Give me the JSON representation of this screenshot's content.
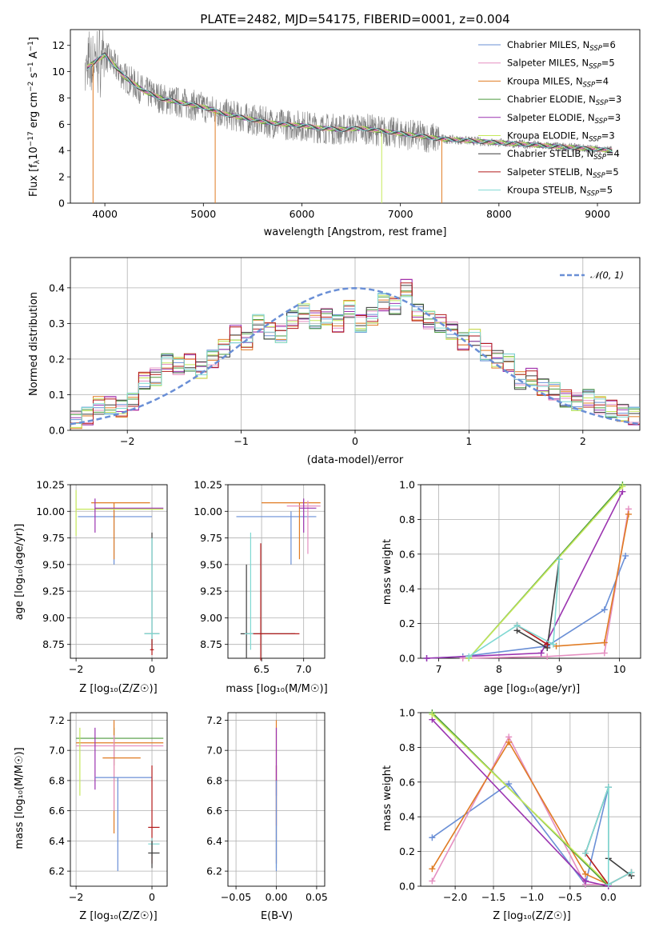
{
  "colors": {
    "blue": "#6a8fd6",
    "pink": "#e58fc1",
    "orange": "#e07b23",
    "green": "#4d9a3f",
    "purple": "#9b33b0",
    "lime": "#c5e85a",
    "dark": "#3d3d3d",
    "red": "#b31b1b",
    "cyan": "#7fd8d2",
    "gray": "#808080"
  },
  "legend": [
    {
      "key": "Chabrier MILES",
      "sub": "6",
      "color": "blue"
    },
    {
      "key": "Salpeter MILES",
      "sub": "5",
      "color": "pink"
    },
    {
      "key": "Kroupa MILES",
      "sub": "4",
      "color": "orange"
    },
    {
      "key": "Chabrier ELODIE",
      "sub": "3",
      "color": "green"
    },
    {
      "key": "Salpeter ELODIE",
      "sub": "3",
      "color": "purple"
    },
    {
      "key": "Kroupa ELODIE",
      "sub": "3",
      "color": "lime"
    },
    {
      "key": "Chabrier STELIB",
      "sub": "4",
      "color": "dark"
    },
    {
      "key": "Salpeter STELIB",
      "sub": "5",
      "color": "red"
    },
    {
      "key": "Kroupa STELIB",
      "sub": "5",
      "color": "cyan"
    }
  ],
  "chart_data": [
    {
      "type": "line",
      "title": "PLATE=2482, MJD=54175, FIBERID=0001, z=0.004",
      "xlabel": "wavelength [Angstrom, rest frame]",
      "ylabel": "Flux [f_λ 10^-17 erg cm^-2 s^-1 A^-1]",
      "xlim": [
        3650,
        9430
      ],
      "ylim": [
        0,
        13.2
      ],
      "xticks": [
        "4000",
        "5000",
        "6000",
        "7000",
        "8000",
        "9000"
      ],
      "yticks": [
        "0",
        "2",
        "4",
        "6",
        "8",
        "10",
        "12"
      ],
      "continuum": {
        "x": [
          3800,
          4000,
          4200,
          4400,
          4600,
          4800,
          5000,
          5200,
          5400,
          5600,
          5800,
          6000,
          6200,
          6400,
          6600,
          6800,
          7000,
          7200,
          7400,
          7600,
          7800,
          8000,
          8200,
          8400,
          8600,
          8800,
          9000,
          9150
        ],
        "y": [
          10.2,
          11.3,
          9.6,
          8.5,
          7.9,
          7.6,
          7.3,
          6.8,
          6.5,
          6.2,
          6.0,
          5.9,
          5.7,
          5.6,
          5.7,
          5.5,
          5.3,
          5.1,
          4.9,
          4.8,
          4.7,
          4.6,
          4.5,
          4.4,
          4.3,
          4.2,
          4.1,
          4.0
        ]
      }
    },
    {
      "type": "bar",
      "xlabel": "(data-model)/error",
      "ylabel": "Normed distribution",
      "xlim": [
        -2.5,
        2.5
      ],
      "ylim": [
        0,
        0.485
      ],
      "xticks": [
        "−2",
        "−1",
        "0",
        "1",
        "2"
      ],
      "yticks": [
        "0.0",
        "0.1",
        "0.2",
        "0.3",
        "0.4"
      ],
      "reference_label": "𝒩(0, 1)",
      "hist_bins": [
        -2.5,
        -2.4,
        -2.3,
        -2.2,
        -2.1,
        -2.0,
        -1.9,
        -1.8,
        -1.7,
        -1.6,
        -1.5,
        -1.4,
        -1.3,
        -1.2,
        -1.1,
        -1.0,
        -0.9,
        -0.8,
        -0.7,
        -0.6,
        -0.5,
        -0.4,
        -0.3,
        -0.2,
        -0.1,
        0.0,
        0.1,
        0.2,
        0.3,
        0.4,
        0.5,
        0.6,
        0.7,
        0.8,
        0.9,
        1.0,
        1.1,
        1.2,
        1.3,
        1.4,
        1.5,
        1.6,
        1.7,
        1.8,
        1.9,
        2.0,
        2.1,
        2.2,
        2.3,
        2.4
      ],
      "hist_values": [
        0.03,
        0.04,
        0.07,
        0.07,
        0.06,
        0.08,
        0.14,
        0.15,
        0.19,
        0.18,
        0.19,
        0.17,
        0.2,
        0.23,
        0.27,
        0.25,
        0.3,
        0.28,
        0.27,
        0.31,
        0.33,
        0.31,
        0.32,
        0.3,
        0.34,
        0.3,
        0.32,
        0.36,
        0.35,
        0.4,
        0.33,
        0.31,
        0.3,
        0.28,
        0.25,
        0.26,
        0.22,
        0.2,
        0.19,
        0.14,
        0.15,
        0.12,
        0.11,
        0.09,
        0.08,
        0.09,
        0.07,
        0.06,
        0.05,
        0.04
      ]
    },
    {
      "type": "scatter",
      "xlabel": "Z [log₁₀(Z/Z☉)]",
      "ylabel": "age  [log₁₀(age/yr)]",
      "xlim": [
        -2.15,
        0.4
      ],
      "ylim": [
        8.62,
        10.25
      ],
      "xticks": [
        "−2",
        "0"
      ],
      "yticks": [
        "8.75",
        "9.00",
        "9.25",
        "9.50",
        "9.75",
        "10.00",
        "10.25"
      ]
    },
    {
      "type": "scatter",
      "xlabel": "mass [log₁₀(M/M☉)]",
      "ylabel": "",
      "xlim": [
        6.1,
        7.25
      ],
      "ylim": [
        8.62,
        10.25
      ],
      "xticks": [
        "6.5",
        "7.0"
      ],
      "yticks": [
        "8.75",
        "9.00",
        "9.25",
        "9.50",
        "9.75",
        "10.00",
        "10.25"
      ]
    },
    {
      "type": "line",
      "xlabel": "age  [log₁₀(age/yr)]",
      "ylabel": "mass weight",
      "xlim": [
        6.7,
        10.35
      ],
      "ylim": [
        0,
        1.0
      ],
      "xticks": [
        "7",
        "8",
        "9",
        "10"
      ],
      "yticks": [
        "0.0",
        "0.2",
        "0.4",
        "0.6",
        "0.8",
        "1.0"
      ],
      "series": [
        {
          "color": "blue",
          "x": [
            6.8,
            7.4,
            8.8,
            9.75,
            10.1
          ],
          "y": [
            0.0,
            0.01,
            0.07,
            0.28,
            0.59
          ]
        },
        {
          "color": "pink",
          "x": [
            7.4,
            8.8,
            9.75,
            10.15
          ],
          "y": [
            0.0,
            0.01,
            0.03,
            0.86
          ]
        },
        {
          "color": "orange",
          "x": [
            8.95,
            9.75,
            10.15
          ],
          "y": [
            0.07,
            0.09,
            0.83
          ]
        },
        {
          "color": "green",
          "x": [
            7.5,
            10.05
          ],
          "y": [
            0.0,
            1.0
          ]
        },
        {
          "color": "purple",
          "x": [
            6.8,
            8.7,
            10.05
          ],
          "y": [
            0.0,
            0.03,
            0.96
          ]
        },
        {
          "color": "lime",
          "x": [
            7.5,
            10.05
          ],
          "y": [
            0.0,
            0.99
          ]
        },
        {
          "color": "dark",
          "x": [
            8.3,
            8.8,
            9.0
          ],
          "y": [
            0.16,
            0.06,
            0.57
          ]
        },
        {
          "color": "red",
          "x": [
            8.3,
            8.8
          ],
          "y": [
            0.19,
            0.08
          ]
        },
        {
          "color": "cyan",
          "x": [
            7.5,
            8.3,
            8.9,
            9.0
          ],
          "y": [
            0.01,
            0.19,
            0.08,
            0.57
          ]
        }
      ]
    },
    {
      "type": "scatter",
      "xlabel": "Z [log₁₀(Z/Z☉)]",
      "ylabel": "mass [log₁₀(M/M☉)]",
      "xlim": [
        -2.15,
        0.4
      ],
      "ylim": [
        6.1,
        7.25
      ],
      "xticks": [
        "−2",
        "0"
      ],
      "yticks": [
        "6.2",
        "6.4",
        "6.6",
        "6.8",
        "7.0",
        "7.2"
      ]
    },
    {
      "type": "scatter",
      "xlabel": "E(B-V)",
      "ylabel": "",
      "xlim": [
        -0.06,
        0.06
      ],
      "ylim": [
        6.1,
        7.25
      ],
      "xticks": [
        "−0.05",
        "0.00",
        "0.05"
      ],
      "yticks": [
        "6.2",
        "6.4",
        "6.6",
        "6.8",
        "7.0",
        "7.2"
      ]
    },
    {
      "type": "line",
      "xlabel": "Z [log₁₀(Z/Z☉)]",
      "ylabel": "mass weight",
      "xlim": [
        -2.45,
        0.42
      ],
      "ylim": [
        0,
        1.0
      ],
      "xticks": [
        "−2.0",
        "−1.5",
        "−1.0",
        "−0.5",
        "0.0"
      ],
      "yticks": [
        "0.0",
        "0.2",
        "0.4",
        "0.6",
        "0.8",
        "1.0"
      ],
      "series": [
        {
          "color": "blue",
          "x": [
            -2.3,
            -1.3,
            -0.3,
            0.0
          ],
          "y": [
            0.28,
            0.59,
            0.01,
            0.57
          ]
        },
        {
          "color": "pink",
          "x": [
            -2.3,
            -1.3,
            -0.3,
            0.0
          ],
          "y": [
            0.03,
            0.86,
            0.01,
            0.01
          ]
        },
        {
          "color": "orange",
          "x": [
            -2.3,
            -1.3,
            -0.3,
            0.0
          ],
          "y": [
            0.1,
            0.83,
            0.07,
            0.01
          ]
        },
        {
          "color": "green",
          "x": [
            -2.3,
            0.0
          ],
          "y": [
            1.0,
            0.0
          ]
        },
        {
          "color": "purple",
          "x": [
            -2.3,
            -0.3,
            0.0
          ],
          "y": [
            0.96,
            0.03,
            0.0
          ]
        },
        {
          "color": "lime",
          "x": [
            -2.3,
            0.0
          ],
          "y": [
            0.99,
            0.01
          ]
        },
        {
          "color": "dark",
          "x": [
            -0.3,
            0.0,
            0.0,
            0.3
          ],
          "y": [
            0.19,
            0.57,
            0.16,
            0.06
          ]
        },
        {
          "color": "red",
          "x": [
            -0.3,
            0.0,
            0.3
          ],
          "y": [
            0.19,
            0.01,
            0.08
          ]
        },
        {
          "color": "cyan",
          "x": [
            -0.3,
            0.0,
            0.0,
            0.3
          ],
          "y": [
            0.19,
            0.57,
            0.01,
            0.08
          ]
        }
      ]
    }
  ],
  "errbars_age_Z": [
    {
      "c": "blue",
      "x": -1.0,
      "y": 9.95,
      "x0": -1.95,
      "x1": 0.0,
      "y0": 9.5,
      "y1": 10.0
    },
    {
      "c": "orange",
      "x": -1.0,
      "y": 10.08,
      "x0": -1.6,
      "x1": -0.05,
      "y0": 9.55,
      "y1": 10.08
    },
    {
      "c": "lime",
      "x": -2.0,
      "y": 10.02,
      "x0": -2.0,
      "x1": 0.3,
      "y0": 9.77,
      "y1": 10.2
    },
    {
      "c": "purple",
      "x": -1.5,
      "y": 10.03,
      "x0": -1.5,
      "x1": 0.3,
      "y0": 9.8,
      "y1": 10.12
    },
    {
      "c": "dark",
      "x": 0.0,
      "y": 8.85,
      "x0": -0.2,
      "x1": 0.2,
      "y0": 8.7,
      "y1": 9.8
    },
    {
      "c": "cyan",
      "x": 0.0,
      "y": 8.85,
      "x0": -0.2,
      "x1": 0.2,
      "y0": 8.75,
      "y1": 9.75
    },
    {
      "c": "red",
      "x": 0.0,
      "y": 8.7,
      "x0": -0.05,
      "x1": 0.05,
      "y0": 8.65,
      "y1": 8.8
    }
  ],
  "errbars_age_mass": [
    {
      "c": "blue",
      "x": 6.85,
      "y": 9.95,
      "x0": 6.2,
      "x1": 7.15,
      "y0": 9.5,
      "y1": 10.0
    },
    {
      "c": "orange",
      "x": 6.95,
      "y": 10.08,
      "x0": 6.5,
      "x1": 7.2,
      "y0": 9.55,
      "y1": 10.08
    },
    {
      "c": "pink",
      "x": 7.05,
      "y": 10.05,
      "x0": 6.8,
      "x1": 7.2,
      "y0": 9.6,
      "y1": 10.1
    },
    {
      "c": "purple",
      "x": 7.0,
      "y": 10.03,
      "x0": 6.95,
      "x1": 7.15,
      "y0": 9.8,
      "y1": 10.12
    },
    {
      "c": "dark",
      "x": 6.32,
      "y": 8.85,
      "x0": 6.25,
      "x1": 6.9,
      "y0": 8.62,
      "y1": 9.5
    },
    {
      "c": "cyan",
      "x": 6.37,
      "y": 8.85,
      "x0": 6.3,
      "x1": 6.85,
      "y0": 8.7,
      "y1": 9.8
    },
    {
      "c": "red",
      "x": 6.49,
      "y": 8.85,
      "x0": 6.4,
      "x1": 6.95,
      "y0": 8.6,
      "y1": 9.7
    }
  ],
  "errbars_mass_Z": [
    {
      "c": "green",
      "x": -1.0,
      "y": 7.08,
      "x0": -2.0,
      "x1": 0.3,
      "y0": 6.9,
      "y1": 7.15
    },
    {
      "c": "orange",
      "x": -1.0,
      "y": 7.05,
      "x0": -2.0,
      "x1": 0.3,
      "y0": 6.45,
      "y1": 7.2
    },
    {
      "c": "pink",
      "x": -1.0,
      "y": 7.03,
      "x0": -2.0,
      "x1": 0.3,
      "y0": 6.6,
      "y1": 7.1
    },
    {
      "c": "orange",
      "x": -0.7,
      "y": 6.95,
      "x0": -1.3,
      "x1": -0.3,
      "y0": 6.95,
      "y1": 6.95
    },
    {
      "c": "lime",
      "x": -1.9,
      "y": 6.95,
      "x0": -1.9,
      "x1": -1.9,
      "y0": 6.7,
      "y1": 7.15
    },
    {
      "c": "purple",
      "x": -1.5,
      "y": 6.95,
      "x0": -1.5,
      "x1": -1.5,
      "y0": 6.74,
      "y1": 7.15
    },
    {
      "c": "blue",
      "x": -0.9,
      "y": 6.82,
      "x0": -1.5,
      "x1": 0.0,
      "y0": 6.2,
      "y1": 6.82
    },
    {
      "c": "red",
      "x": 0.0,
      "y": 6.49,
      "x0": -0.1,
      "x1": 0.2,
      "y0": 6.25,
      "y1": 6.9
    },
    {
      "c": "cyan",
      "x": 0.0,
      "y": 6.38,
      "x0": -0.1,
      "x1": 0.2,
      "y0": 6.3,
      "y1": 6.42
    },
    {
      "c": "dark",
      "x": 0.0,
      "y": 6.32,
      "x0": -0.1,
      "x1": 0.2,
      "y0": 6.22,
      "y1": 6.4
    }
  ],
  "errbars_mass_ebv": [
    {
      "c": "orange",
      "x": 0.0,
      "y": 6.9,
      "y0": 6.5,
      "y1": 7.2
    },
    {
      "c": "red",
      "x": 0.0,
      "y": 6.5,
      "y0": 6.25,
      "y1": 6.9
    },
    {
      "c": "purple",
      "x": 0.0,
      "y": 7.0,
      "y0": 6.7,
      "y1": 7.15
    },
    {
      "c": "cyan",
      "x": 0.0,
      "y": 6.4,
      "y0": 6.22,
      "y1": 6.5
    },
    {
      "c": "blue",
      "x": 0.0,
      "y": 6.6,
      "y0": 6.2,
      "y1": 6.8
    }
  ]
}
